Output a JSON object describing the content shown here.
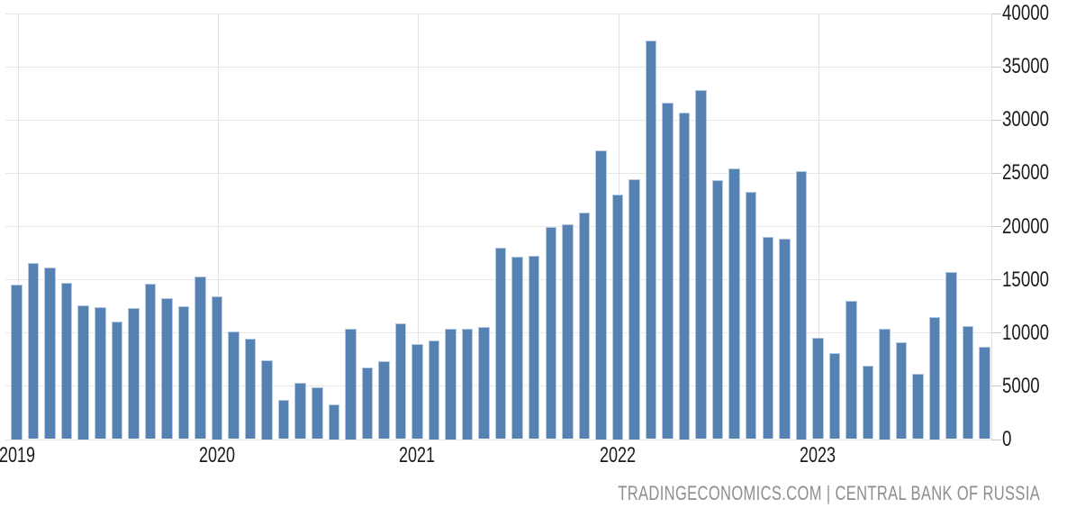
{
  "chart_data": {
    "type": "bar",
    "title": "",
    "xlabel": "",
    "ylabel": "",
    "ylim": [
      0,
      40000
    ],
    "y_ticks": [
      0,
      5000,
      10000,
      15000,
      20000,
      25000,
      30000,
      35000,
      40000
    ],
    "y_tick_labels": [
      "0",
      "5000",
      "10000",
      "15000",
      "20000",
      "25000",
      "30000",
      "35000",
      "40000"
    ],
    "x_year_labels": [
      "2019",
      "2020",
      "2021",
      "2022",
      "2023"
    ],
    "grid": true,
    "legend": "none",
    "categories": [
      "2019-01",
      "2019-02",
      "2019-03",
      "2019-04",
      "2019-05",
      "2019-06",
      "2019-07",
      "2019-08",
      "2019-09",
      "2019-10",
      "2019-11",
      "2019-12",
      "2020-01",
      "2020-02",
      "2020-03",
      "2020-04",
      "2020-05",
      "2020-06",
      "2020-07",
      "2020-08",
      "2020-09",
      "2020-10",
      "2020-11",
      "2020-12",
      "2021-01",
      "2021-02",
      "2021-03",
      "2021-04",
      "2021-05",
      "2021-06",
      "2021-07",
      "2021-08",
      "2021-09",
      "2021-10",
      "2021-11",
      "2021-12",
      "2022-01",
      "2022-02",
      "2022-03",
      "2022-04",
      "2022-05",
      "2022-06",
      "2022-07",
      "2022-08",
      "2022-09",
      "2022-10",
      "2022-11",
      "2022-12",
      "2023-01",
      "2023-02",
      "2023-03",
      "2023-04",
      "2023-05",
      "2023-06",
      "2023-07",
      "2023-08",
      "2023-09",
      "2023-10",
      "2023-11"
    ],
    "values": [
      14500,
      16500,
      16100,
      14700,
      12600,
      12400,
      11000,
      12300,
      14600,
      13200,
      12500,
      15300,
      13400,
      10100,
      9400,
      7400,
      3700,
      5300,
      4900,
      3300,
      10400,
      6700,
      7300,
      10900,
      8900,
      9300,
      10400,
      10400,
      10500,
      18000,
      17100,
      17200,
      19900,
      20200,
      21300,
      27100,
      23000,
      24400,
      37400,
      31600,
      30700,
      32800,
      24300,
      25400,
      23200,
      19000,
      18800,
      25200,
      9500,
      8100,
      13000,
      6900,
      10400,
      9100,
      6100,
      11500,
      15700,
      10600,
      8700
    ]
  },
  "colors": {
    "bar_fill": "#5581b3",
    "bar_border": "#b5c9e0",
    "grid_h": "#e8e8e8",
    "grid_v": "#e2e2e2",
    "tick": "#c9c9c9",
    "axis_text": "#1b1b1b",
    "attribution_text": "#8e8e8e",
    "background": "#ffffff"
  },
  "attribution": {
    "source_site": "TRADINGECONOMICS.COM",
    "separator": " | ",
    "source_name": "CENTRAL BANK OF RUSSIA"
  }
}
